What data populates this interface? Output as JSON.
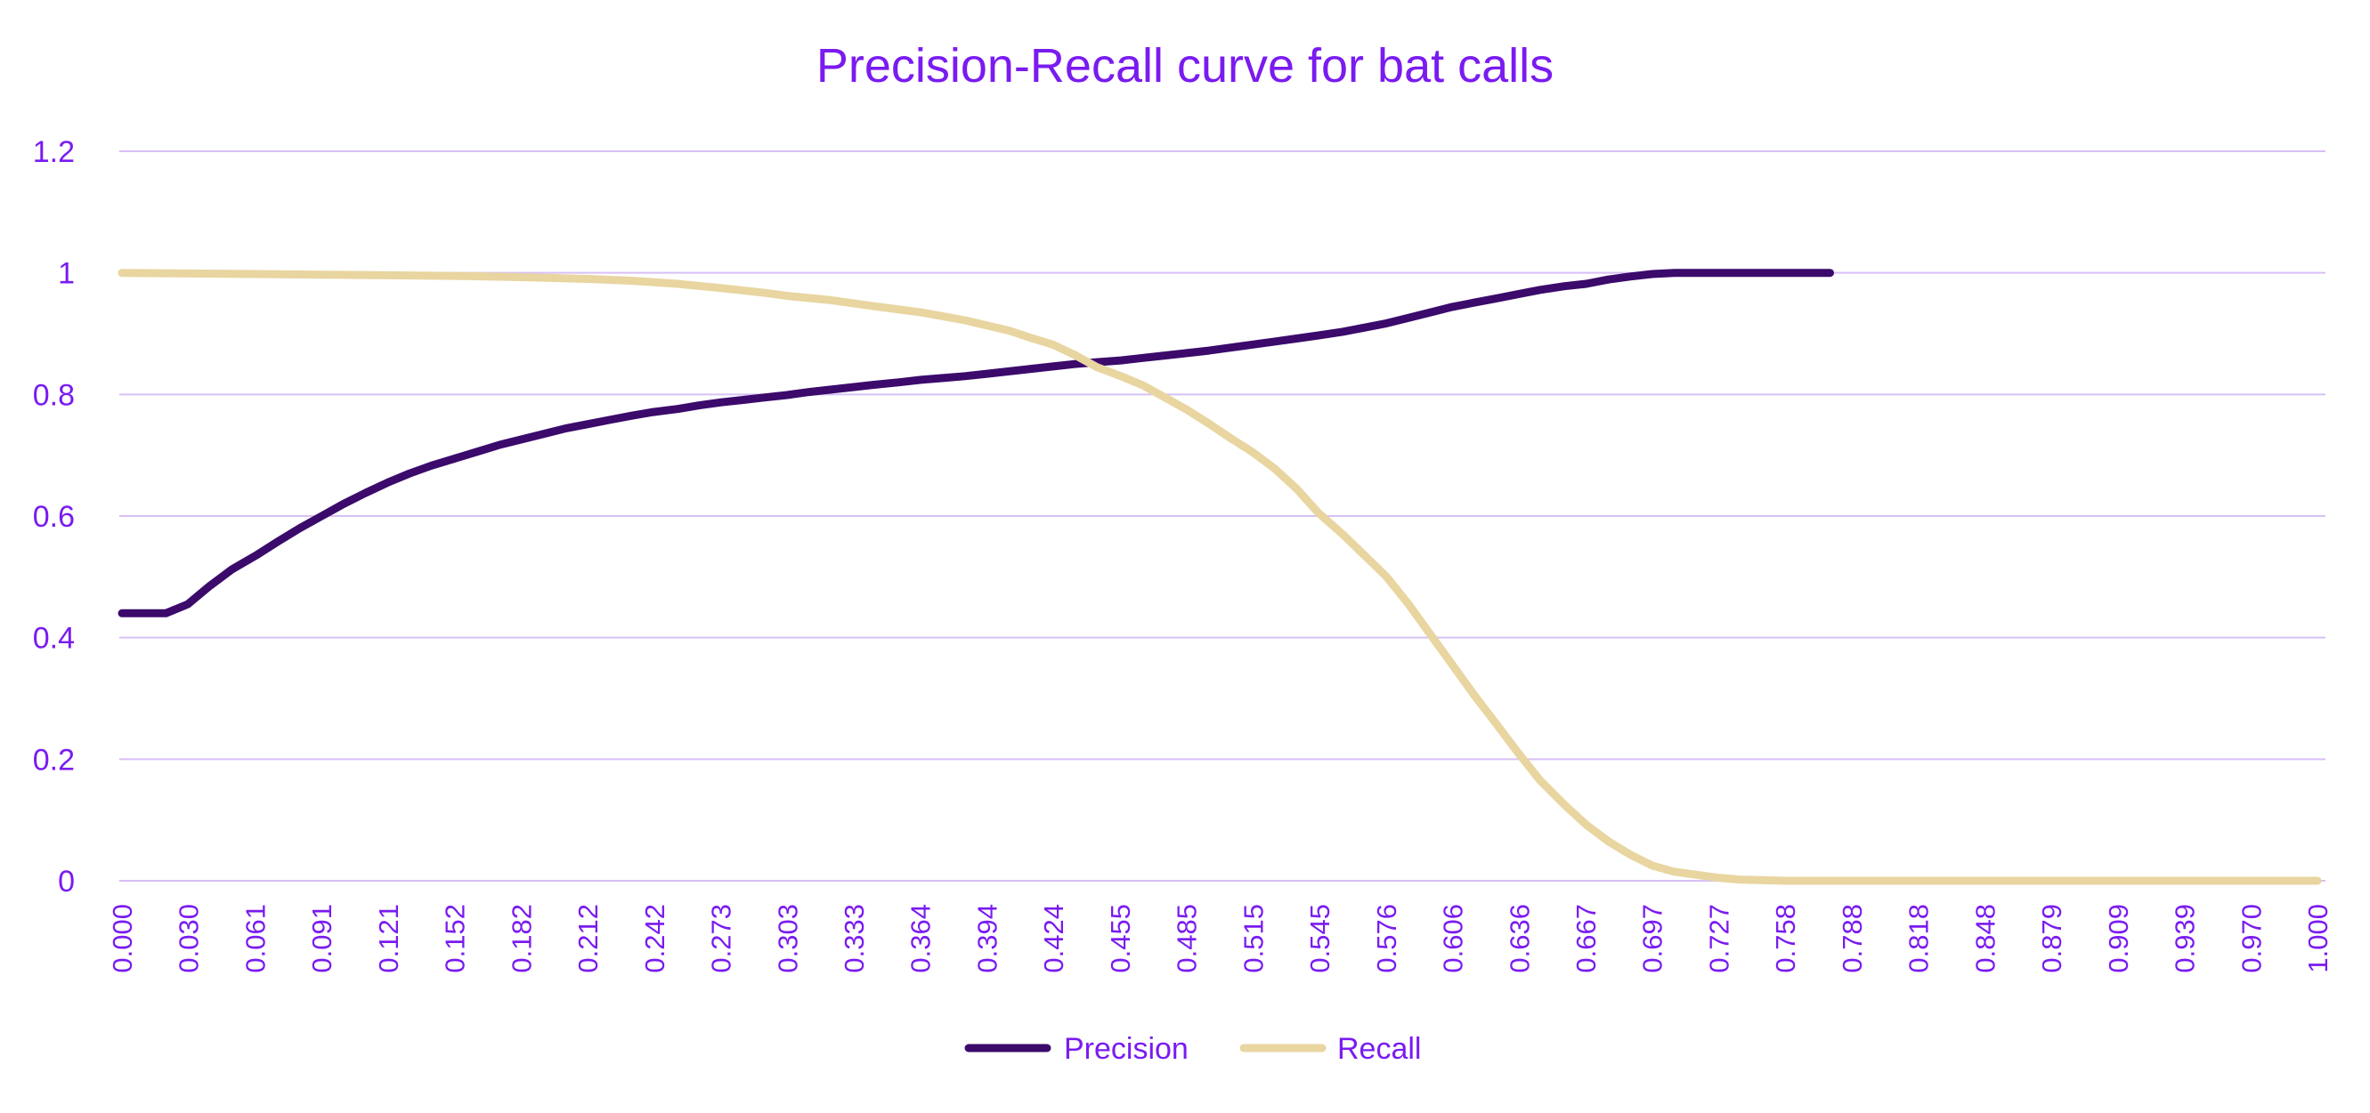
{
  "chart_data": {
    "type": "line",
    "title": "Precision-Recall curve for bat calls",
    "xlabel": "",
    "ylabel": "",
    "ylim": [
      0,
      1.2
    ],
    "yticks": [
      "0",
      "0.2",
      "0.4",
      "0.6",
      "0.8",
      "1",
      "1.2"
    ],
    "x_tick_labels": [
      "0.000",
      "0.030",
      "0.061",
      "0.091",
      "0.121",
      "0.152",
      "0.182",
      "0.212",
      "0.242",
      "0.273",
      "0.303",
      "0.333",
      "0.364",
      "0.394",
      "0.424",
      "0.455",
      "0.485",
      "0.515",
      "0.545",
      "0.576",
      "0.606",
      "0.636",
      "0.667",
      "0.697",
      "0.727",
      "0.758",
      "0.788",
      "0.818",
      "0.848",
      "0.879",
      "0.909",
      "0.939",
      "0.970",
      "1.000"
    ],
    "grid": true,
    "legend": "bottom",
    "series": [
      {
        "name": "Precision",
        "color": "#3b0a6b",
        "points": [
          [
            0.0,
            0.44
          ],
          [
            0.01,
            0.44
          ],
          [
            0.02,
            0.44
          ],
          [
            0.03,
            0.455
          ],
          [
            0.04,
            0.485
          ],
          [
            0.05,
            0.512
          ],
          [
            0.061,
            0.535
          ],
          [
            0.071,
            0.558
          ],
          [
            0.081,
            0.58
          ],
          [
            0.091,
            0.6
          ],
          [
            0.101,
            0.62
          ],
          [
            0.111,
            0.638
          ],
          [
            0.121,
            0.655
          ],
          [
            0.131,
            0.67
          ],
          [
            0.141,
            0.683
          ],
          [
            0.152,
            0.695
          ],
          [
            0.162,
            0.706
          ],
          [
            0.172,
            0.717
          ],
          [
            0.182,
            0.726
          ],
          [
            0.192,
            0.735
          ],
          [
            0.202,
            0.744
          ],
          [
            0.212,
            0.751
          ],
          [
            0.222,
            0.758
          ],
          [
            0.232,
            0.765
          ],
          [
            0.242,
            0.771
          ],
          [
            0.253,
            0.776
          ],
          [
            0.263,
            0.782
          ],
          [
            0.273,
            0.787
          ],
          [
            0.283,
            0.791
          ],
          [
            0.293,
            0.795
          ],
          [
            0.303,
            0.799
          ],
          [
            0.313,
            0.804
          ],
          [
            0.323,
            0.808
          ],
          [
            0.333,
            0.812
          ],
          [
            0.343,
            0.816
          ],
          [
            0.354,
            0.82
          ],
          [
            0.364,
            0.824
          ],
          [
            0.374,
            0.827
          ],
          [
            0.384,
            0.83
          ],
          [
            0.394,
            0.834
          ],
          [
            0.404,
            0.838
          ],
          [
            0.414,
            0.842
          ],
          [
            0.424,
            0.846
          ],
          [
            0.434,
            0.85
          ],
          [
            0.444,
            0.853
          ],
          [
            0.455,
            0.856
          ],
          [
            0.465,
            0.86
          ],
          [
            0.475,
            0.864
          ],
          [
            0.485,
            0.868
          ],
          [
            0.495,
            0.872
          ],
          [
            0.505,
            0.877
          ],
          [
            0.515,
            0.882
          ],
          [
            0.525,
            0.887
          ],
          [
            0.535,
            0.892
          ],
          [
            0.545,
            0.897
          ],
          [
            0.556,
            0.903
          ],
          [
            0.566,
            0.91
          ],
          [
            0.576,
            0.917
          ],
          [
            0.586,
            0.926
          ],
          [
            0.596,
            0.935
          ],
          [
            0.606,
            0.944
          ],
          [
            0.616,
            0.951
          ],
          [
            0.626,
            0.958
          ],
          [
            0.636,
            0.965
          ],
          [
            0.646,
            0.972
          ],
          [
            0.657,
            0.978
          ],
          [
            0.667,
            0.982
          ],
          [
            0.677,
            0.989
          ],
          [
            0.687,
            0.994
          ],
          [
            0.697,
            0.998
          ],
          [
            0.707,
            1.0
          ],
          [
            0.717,
            1.0
          ],
          [
            0.727,
            1.0
          ],
          [
            0.737,
            1.0
          ],
          [
            0.747,
            1.0
          ],
          [
            0.758,
            1.0
          ],
          [
            0.768,
            1.0
          ],
          [
            0.778,
            1.0
          ]
        ]
      },
      {
        "name": "Recall",
        "color": "#e8d5a0",
        "points": [
          [
            0.0,
            1.0
          ],
          [
            0.03,
            0.999
          ],
          [
            0.061,
            0.998
          ],
          [
            0.091,
            0.997
          ],
          [
            0.121,
            0.996
          ],
          [
            0.152,
            0.995
          ],
          [
            0.182,
            0.993
          ],
          [
            0.212,
            0.99
          ],
          [
            0.232,
            0.987
          ],
          [
            0.253,
            0.982
          ],
          [
            0.273,
            0.975
          ],
          [
            0.293,
            0.967
          ],
          [
            0.303,
            0.962
          ],
          [
            0.323,
            0.955
          ],
          [
            0.343,
            0.945
          ],
          [
            0.364,
            0.935
          ],
          [
            0.384,
            0.922
          ],
          [
            0.404,
            0.905
          ],
          [
            0.414,
            0.893
          ],
          [
            0.424,
            0.882
          ],
          [
            0.434,
            0.865
          ],
          [
            0.444,
            0.845
          ],
          [
            0.455,
            0.83
          ],
          [
            0.465,
            0.815
          ],
          [
            0.475,
            0.795
          ],
          [
            0.485,
            0.775
          ],
          [
            0.495,
            0.752
          ],
          [
            0.505,
            0.728
          ],
          [
            0.515,
            0.705
          ],
          [
            0.525,
            0.678
          ],
          [
            0.535,
            0.645
          ],
          [
            0.545,
            0.605
          ],
          [
            0.556,
            0.57
          ],
          [
            0.566,
            0.535
          ],
          [
            0.576,
            0.5
          ],
          [
            0.586,
            0.455
          ],
          [
            0.596,
            0.405
          ],
          [
            0.606,
            0.355
          ],
          [
            0.616,
            0.305
          ],
          [
            0.626,
            0.258
          ],
          [
            0.636,
            0.21
          ],
          [
            0.646,
            0.165
          ],
          [
            0.657,
            0.125
          ],
          [
            0.667,
            0.092
          ],
          [
            0.677,
            0.065
          ],
          [
            0.687,
            0.043
          ],
          [
            0.697,
            0.025
          ],
          [
            0.707,
            0.015
          ],
          [
            0.717,
            0.01
          ],
          [
            0.727,
            0.005
          ],
          [
            0.737,
            0.002
          ],
          [
            0.758,
            0.0
          ],
          [
            0.788,
            0.0
          ],
          [
            0.818,
            0.0
          ],
          [
            0.848,
            0.0
          ],
          [
            0.879,
            0.0
          ],
          [
            0.909,
            0.0
          ],
          [
            0.939,
            0.0
          ],
          [
            0.97,
            0.0
          ],
          [
            1.0,
            0.0
          ]
        ]
      }
    ]
  },
  "colors": {
    "text": "#7a1bf0",
    "grid": "#d8c0f5",
    "background": "#ffffff"
  }
}
